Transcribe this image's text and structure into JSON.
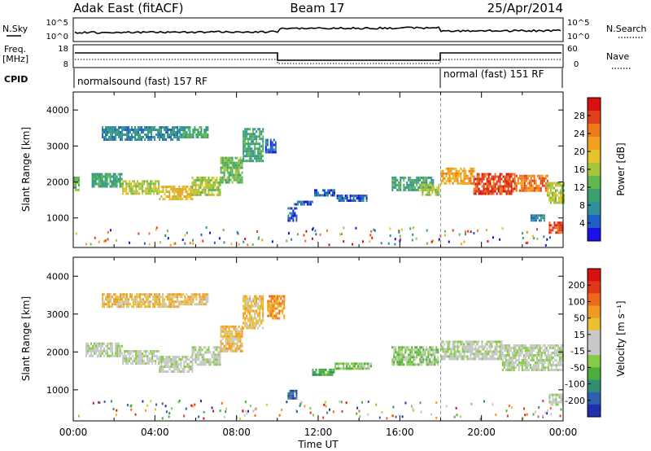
{
  "header": {
    "station": "Adak East (fitACF)",
    "beam": "Beam 17",
    "date": "25/Apr/2014"
  },
  "side_labels": {
    "nsky": "N.Sky",
    "nsearch": "N.Search",
    "freq_top": "Freq.",
    "freq_unit": "[MHz]",
    "nave": "Nave",
    "cpid": "CPID"
  },
  "noise_axis": {
    "left_ticks": [
      "10^5",
      "10^0"
    ],
    "right_ticks": [
      "10^5",
      "10^0"
    ]
  },
  "freq_axis": {
    "left_ticks": [
      "18",
      "8"
    ],
    "right_ticks": [
      "60",
      "0"
    ]
  },
  "cpid_segments": [
    {
      "label": "normalsound (fast) 157 RF",
      "start_hour": 0,
      "end_hour": 18
    },
    {
      "label": "normal (fast) 151 RF",
      "start_hour": 18,
      "end_hour": 24
    }
  ],
  "chart_data": [
    {
      "type": "heatmap",
      "title": "",
      "xlabel": "",
      "ylabel": "Slant Range [km]",
      "xlim": [
        0,
        24
      ],
      "ylim": [
        180,
        4500
      ],
      "ytick_labels": [
        "1000",
        "2000",
        "3000",
        "4000"
      ],
      "colorbar": {
        "label": "Power [dB]",
        "ticks": [
          "4",
          "8",
          "12",
          "16",
          "20",
          "24",
          "28"
        ],
        "colors": [
          "#1a10e8",
          "#1f5fc8",
          "#2f8f9a",
          "#3aa070",
          "#63b84c",
          "#a6c43c",
          "#e8c22a",
          "#f2a020",
          "#ee7a1a",
          "#e0401a",
          "#d81010"
        ]
      },
      "echo_bands": [
        {
          "t0": 0.0,
          "t1": 0.3,
          "r0": 1750,
          "r1": 2150,
          "level": 4
        },
        {
          "t0": 0.9,
          "t1": 2.4,
          "r0": 1900,
          "r1": 2250,
          "level": 3
        },
        {
          "t0": 2.4,
          "t1": 4.2,
          "r0": 1700,
          "r1": 2050,
          "level": 5
        },
        {
          "t0": 4.2,
          "t1": 5.8,
          "r0": 1500,
          "r1": 1900,
          "level": 6
        },
        {
          "t0": 5.8,
          "t1": 7.2,
          "r0": 1650,
          "r1": 2150,
          "level": 5
        },
        {
          "t0": 7.2,
          "t1": 8.3,
          "r0": 2000,
          "r1": 2700,
          "level": 4
        },
        {
          "t0": 8.3,
          "t1": 9.3,
          "r0": 2600,
          "r1": 3500,
          "level": 3
        },
        {
          "t0": 1.4,
          "t1": 5.2,
          "r0": 3200,
          "r1": 3550,
          "level": 2
        },
        {
          "t0": 5.2,
          "t1": 6.6,
          "r0": 3250,
          "r1": 3550,
          "level": 3
        },
        {
          "t0": 9.4,
          "t1": 9.9,
          "r0": 2800,
          "r1": 3200,
          "level": 1
        },
        {
          "t0": 10.5,
          "t1": 10.9,
          "r0": 950,
          "r1": 1300,
          "level": 1
        },
        {
          "t0": 10.8,
          "t1": 11.7,
          "r0": 1350,
          "r1": 1480,
          "level": 1
        },
        {
          "t0": 11.8,
          "t1": 12.8,
          "r0": 1600,
          "r1": 1800,
          "level": 1
        },
        {
          "t0": 12.9,
          "t1": 14.4,
          "r0": 1450,
          "r1": 1650,
          "level": 1
        },
        {
          "t0": 15.6,
          "t1": 17.6,
          "r0": 1750,
          "r1": 2150,
          "level": 3
        },
        {
          "t0": 17.0,
          "t1": 17.9,
          "r0": 1650,
          "r1": 1950,
          "level": 5
        },
        {
          "t0": 18.0,
          "t1": 19.6,
          "r0": 1950,
          "r1": 2400,
          "level": 7
        },
        {
          "t0": 19.6,
          "t1": 21.6,
          "r0": 1700,
          "r1": 2250,
          "level": 9
        },
        {
          "t0": 21.6,
          "t1": 23.2,
          "r0": 1750,
          "r1": 2200,
          "level": 8
        },
        {
          "t0": 23.2,
          "t1": 24.0,
          "r0": 1450,
          "r1": 2000,
          "level": 5
        },
        {
          "t0": 23.3,
          "t1": 24.0,
          "r0": 600,
          "r1": 900,
          "level": 9
        },
        {
          "t0": 22.4,
          "t1": 23.1,
          "r0": 900,
          "r1": 1100,
          "level": 2
        }
      ]
    },
    {
      "type": "heatmap",
      "title": "",
      "xlabel": "Time UT",
      "ylabel": "Slant Range [km]",
      "xlim": [
        0,
        24
      ],
      "ylim": [
        180,
        4500
      ],
      "ytick_labels": [
        "1000",
        "2000",
        "3000",
        "4000"
      ],
      "xtick_labels": [
        "00:00",
        "04:00",
        "08:00",
        "12:00",
        "16:00",
        "20:00",
        "00:00"
      ],
      "colorbar": {
        "label": "Velocity [m s⁻¹]",
        "ticks": [
          "200",
          "100",
          "50",
          "15",
          "-15",
          "-50",
          "-100",
          "-200"
        ],
        "colors": [
          "#1f2fb0",
          "#2f5fb0",
          "#2f8f70",
          "#4cae3c",
          "#86cc44",
          "#c8c8c8",
          "#c8c8c8",
          "#e8c030",
          "#f09a20",
          "#ee6a1a",
          "#e03818",
          "#d81010"
        ]
      },
      "echo_bands": [
        {
          "t0": 0.6,
          "t1": 2.4,
          "r0": 1900,
          "r1": 2250,
          "level": 5
        },
        {
          "t0": 2.4,
          "t1": 4.2,
          "r0": 1700,
          "r1": 2050,
          "level": 5
        },
        {
          "t0": 4.2,
          "t1": 5.8,
          "r0": 1500,
          "r1": 1900,
          "level": 5
        },
        {
          "t0": 5.8,
          "t1": 7.2,
          "r0": 1650,
          "r1": 2150,
          "level": 5
        },
        {
          "t0": 7.2,
          "t1": 8.3,
          "r0": 2000,
          "r1": 2700,
          "level": 7
        },
        {
          "t0": 8.3,
          "t1": 9.3,
          "r0": 2600,
          "r1": 3500,
          "level": 7
        },
        {
          "t0": 1.4,
          "t1": 5.2,
          "r0": 3200,
          "r1": 3550,
          "level": 7
        },
        {
          "t0": 5.2,
          "t1": 6.6,
          "r0": 3250,
          "r1": 3550,
          "level": 7
        },
        {
          "t0": 9.5,
          "t1": 10.3,
          "r0": 2900,
          "r1": 3500,
          "level": 8
        },
        {
          "t0": 10.5,
          "t1": 10.9,
          "r0": 800,
          "r1": 1000,
          "level": 1
        },
        {
          "t0": 11.7,
          "t1": 12.8,
          "r0": 1380,
          "r1": 1560,
          "level": 3
        },
        {
          "t0": 12.8,
          "t1": 14.6,
          "r0": 1550,
          "r1": 1720,
          "level": 4
        },
        {
          "t0": 15.6,
          "t1": 17.9,
          "r0": 1650,
          "r1": 2150,
          "level": 4
        },
        {
          "t0": 18.0,
          "t1": 21.0,
          "r0": 1800,
          "r1": 2300,
          "level": 5
        },
        {
          "t0": 21.0,
          "t1": 24.0,
          "r0": 1500,
          "r1": 2200,
          "level": 5
        },
        {
          "t0": 23.3,
          "t1": 24.0,
          "r0": 600,
          "r1": 900,
          "level": 5
        }
      ]
    }
  ]
}
